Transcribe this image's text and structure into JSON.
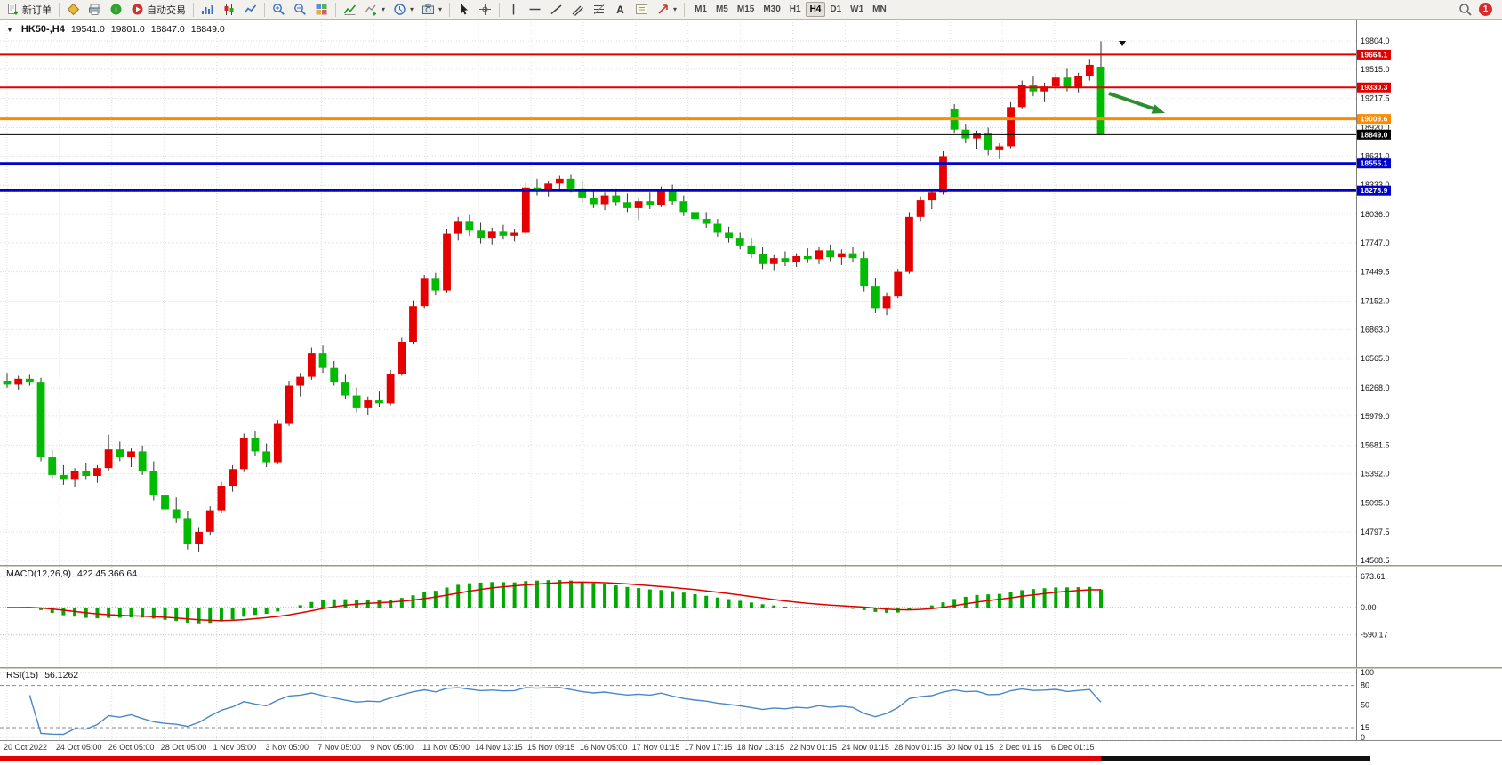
{
  "toolbar": {
    "items": [
      {
        "t": "btn",
        "name": "new-order",
        "icon": "doc-plus",
        "label": "新订单"
      },
      {
        "t": "sep"
      },
      {
        "t": "icon",
        "name": "chart-profile",
        "icon": "diamond"
      },
      {
        "t": "icon",
        "name": "print",
        "icon": "printer"
      },
      {
        "t": "icon",
        "name": "market-info",
        "icon": "info"
      },
      {
        "t": "btn",
        "name": "auto-trading",
        "icon": "autotrade",
        "label": "自动交易"
      },
      {
        "t": "sep"
      },
      {
        "t": "icon",
        "name": "bar-chart",
        "icon": "barchart"
      },
      {
        "t": "icon",
        "name": "candle-chart",
        "icon": "candles"
      },
      {
        "t": "icon",
        "name": "line-chart",
        "icon": "linechart"
      },
      {
        "t": "sep"
      },
      {
        "t": "icon",
        "name": "zoom-in",
        "icon": "zoomin"
      },
      {
        "t": "icon",
        "name": "zoom-out",
        "icon": "zoomout"
      },
      {
        "t": "icon",
        "name": "tile-windows",
        "icon": "tile"
      },
      {
        "t": "sep"
      },
      {
        "t": "icon",
        "name": "indicators",
        "icon": "indicator"
      },
      {
        "t": "icon",
        "name": "add-indicator",
        "icon": "addind",
        "caret": true
      },
      {
        "t": "icon",
        "name": "periods",
        "icon": "cycles",
        "caret": true
      },
      {
        "t": "icon",
        "name": "templates",
        "icon": "camera",
        "caret": true
      },
      {
        "t": "sep"
      },
      {
        "t": "icon",
        "name": "cursor",
        "icon": "cursor"
      },
      {
        "t": "icon",
        "name": "crosshair",
        "icon": "crosshair"
      },
      {
        "t": "sep"
      },
      {
        "t": "icon",
        "name": "vertical-line",
        "icon": "vline"
      },
      {
        "t": "icon",
        "name": "horizontal-line",
        "icon": "hline"
      },
      {
        "t": "icon",
        "name": "trendline",
        "icon": "tline"
      },
      {
        "t": "icon",
        "name": "equidistant-channel",
        "icon": "channel"
      },
      {
        "t": "icon",
        "name": "fibonacci",
        "icon": "fibo"
      },
      {
        "t": "icon",
        "name": "text",
        "icon": "textA"
      },
      {
        "t": "icon",
        "name": "text-label",
        "icon": "textT"
      },
      {
        "t": "icon",
        "name": "arrow-tools",
        "icon": "arrows",
        "caret": true
      },
      {
        "t": "sep"
      }
    ],
    "timeframes": [
      {
        "label": "M1"
      },
      {
        "label": "M5"
      },
      {
        "label": "M15"
      },
      {
        "label": "M30"
      },
      {
        "label": "H1"
      },
      {
        "label": "H4",
        "active": true
      },
      {
        "label": "D1"
      },
      {
        "label": "W1"
      },
      {
        "label": "MN"
      }
    ],
    "right": {
      "badge": "1"
    }
  },
  "chart": {
    "header": {
      "collapse_icon": "▼",
      "symbol": "HK50-,H4",
      "open": "19541.0",
      "high": "19801.0",
      "low": "18847.0",
      "close": "18849.0"
    },
    "levels": [
      {
        "label": "19664.1",
        "value": 19664.1,
        "color": "#e00000",
        "thickness": 2
      },
      {
        "label": "19330.3",
        "value": 19330.3,
        "color": "#e00000",
        "thickness": 2
      },
      {
        "label": "19009.6",
        "value": 19009.6,
        "color": "#ff8a00",
        "thickness": 3
      },
      {
        "label": "18849.0",
        "value": 18849.0,
        "color": "#000000",
        "thickness": 1
      },
      {
        "label": "18555.1",
        "value": 18555.1,
        "color": "#0000cc",
        "thickness": 3
      },
      {
        "label": "18278.9",
        "value": 18278.9,
        "color": "#0000cc",
        "thickness": 3
      }
    ],
    "arrow_color": "#2e8b2e"
  },
  "macd": {
    "title": "MACD(12,26,9)",
    "values": "422.45 366.64",
    "fast": 12,
    "slow": 26,
    "signal": 9,
    "bar_color": "#00a800",
    "signal_color": "#e00000",
    "axis": [
      {
        "label": "673.61",
        "value": 673.61
      },
      {
        "label": "0.00",
        "value": 0
      },
      {
        "label": "-590.17",
        "value": -590.17
      }
    ]
  },
  "rsi": {
    "title": "RSI(15)",
    "value": "56.1262",
    "period": 15,
    "line_color": "#4a86c8",
    "axis": [
      {
        "label": "100",
        "value": 100
      },
      {
        "label": "80",
        "value": 80
      },
      {
        "label": "50",
        "value": 50
      },
      {
        "label": "15",
        "value": 15
      },
      {
        "label": "0",
        "value": 0
      }
    ]
  },
  "chart_data": {
    "type": "candlestick",
    "symbol": "HK50-",
    "timeframe": "H4",
    "up_color": "#e60000",
    "down_color": "#00bb00",
    "y_min": 14508.5,
    "y_max": 19804.0,
    "y_ticks": [
      {
        "label": "19804.0",
        "value": 19804.0
      },
      {
        "label": "19515.0",
        "value": 19515.0
      },
      {
        "label": "19217.5",
        "value": 19217.5
      },
      {
        "label": "18920.0",
        "value": 18920.0
      },
      {
        "label": "18631.0",
        "value": 18631.0
      },
      {
        "label": "18333.0",
        "value": 18333.0
      },
      {
        "label": "18036.0",
        "value": 18036.0
      },
      {
        "label": "17747.0",
        "value": 17747.0
      },
      {
        "label": "17449.5",
        "value": 17449.5
      },
      {
        "label": "17152.0",
        "value": 17152.0
      },
      {
        "label": "16863.0",
        "value": 16863.0
      },
      {
        "label": "16565.0",
        "value": 16565.0
      },
      {
        "label": "16268.0",
        "value": 16268.0
      },
      {
        "label": "15979.0",
        "value": 15979.0
      },
      {
        "label": "15681.5",
        "value": 15681.5
      },
      {
        "label": "15392.0",
        "value": 15392.0
      },
      {
        "label": "15095.0",
        "value": 15095.0
      },
      {
        "label": "14797.5",
        "value": 14797.5
      },
      {
        "label": "14508.5",
        "value": 14508.5
      }
    ],
    "x_labels": [
      "20 Oct 2022",
      "24 Oct 05:00",
      "26 Oct 05:00",
      "28 Oct 05:00",
      "1 Nov 05:00",
      "3 Nov 05:00",
      "7 Nov 05:00",
      "9 Nov 05:00",
      "11 Nov 05:00",
      "14 Nov 13:15",
      "15 Nov 09:15",
      "16 Nov 05:00",
      "17 Nov 01:15",
      "17 Nov 17:15",
      "18 Nov 13:15",
      "22 Nov 01:15",
      "24 Nov 01:15",
      "28 Nov 01:15",
      "30 Nov 01:15",
      "2 Dec 01:15",
      "6 Dec 01:15"
    ],
    "ohlc": [
      [
        16340,
        16420,
        16270,
        16300
      ],
      [
        16300,
        16390,
        16250,
        16360
      ],
      [
        16360,
        16400,
        16290,
        16330
      ],
      [
        16330,
        16370,
        15520,
        15560
      ],
      [
        15560,
        15640,
        15340,
        15380
      ],
      [
        15380,
        15480,
        15280,
        15330
      ],
      [
        15330,
        15450,
        15260,
        15420
      ],
      [
        15420,
        15500,
        15330,
        15370
      ],
      [
        15370,
        15480,
        15300,
        15450
      ],
      [
        15450,
        15790,
        15420,
        15640
      ],
      [
        15640,
        15720,
        15520,
        15560
      ],
      [
        15560,
        15650,
        15460,
        15620
      ],
      [
        15620,
        15680,
        15380,
        15420
      ],
      [
        15420,
        15520,
        15120,
        15170
      ],
      [
        15170,
        15280,
        14980,
        15030
      ],
      [
        15030,
        15150,
        14890,
        14940
      ],
      [
        14940,
        15010,
        14620,
        14680
      ],
      [
        14680,
        14840,
        14600,
        14800
      ],
      [
        14800,
        15060,
        14760,
        15020
      ],
      [
        15020,
        15310,
        14990,
        15270
      ],
      [
        15270,
        15480,
        15210,
        15440
      ],
      [
        15440,
        15800,
        15410,
        15760
      ],
      [
        15760,
        15830,
        15570,
        15620
      ],
      [
        15620,
        15700,
        15460,
        15510
      ],
      [
        15510,
        15940,
        15490,
        15900
      ],
      [
        15900,
        16340,
        15880,
        16290
      ],
      [
        16290,
        16420,
        16180,
        16380
      ],
      [
        16380,
        16680,
        16350,
        16620
      ],
      [
        16620,
        16700,
        16420,
        16470
      ],
      [
        16470,
        16540,
        16290,
        16330
      ],
      [
        16330,
        16400,
        16150,
        16190
      ],
      [
        16190,
        16270,
        16020,
        16060
      ],
      [
        16060,
        16180,
        15990,
        16140
      ],
      [
        16140,
        16230,
        16070,
        16110
      ],
      [
        16110,
        16450,
        16090,
        16410
      ],
      [
        16410,
        16780,
        16390,
        16730
      ],
      [
        16730,
        17160,
        16710,
        17100
      ],
      [
        17100,
        17420,
        17080,
        17380
      ],
      [
        17380,
        17440,
        17210,
        17260
      ],
      [
        17260,
        17890,
        17240,
        17840
      ],
      [
        17840,
        18010,
        17770,
        17960
      ],
      [
        17960,
        18030,
        17820,
        17870
      ],
      [
        17870,
        17950,
        17740,
        17790
      ],
      [
        17790,
        17900,
        17730,
        17860
      ],
      [
        17860,
        17930,
        17780,
        17820
      ],
      [
        17820,
        17890,
        17760,
        17850
      ],
      [
        17850,
        18360,
        17830,
        18310
      ],
      [
        18310,
        18400,
        18230,
        18280
      ],
      [
        18280,
        18380,
        18220,
        18350
      ],
      [
        18350,
        18430,
        18280,
        18400
      ],
      [
        18400,
        18440,
        18260,
        18300
      ],
      [
        18300,
        18370,
        18160,
        18200
      ],
      [
        18200,
        18290,
        18100,
        18140
      ],
      [
        18140,
        18260,
        18080,
        18230
      ],
      [
        18230,
        18300,
        18120,
        18160
      ],
      [
        18160,
        18250,
        18060,
        18100
      ],
      [
        18100,
        18200,
        17980,
        18170
      ],
      [
        18170,
        18260,
        18090,
        18130
      ],
      [
        18130,
        18320,
        18110,
        18290
      ],
      [
        18290,
        18340,
        18130,
        18170
      ],
      [
        18170,
        18230,
        18020,
        18060
      ],
      [
        18060,
        18140,
        17950,
        17990
      ],
      [
        17990,
        18060,
        17900,
        17940
      ],
      [
        17940,
        17990,
        17810,
        17850
      ],
      [
        17850,
        17910,
        17750,
        17790
      ],
      [
        17790,
        17850,
        17680,
        17720
      ],
      [
        17720,
        17800,
        17590,
        17630
      ],
      [
        17630,
        17700,
        17480,
        17530
      ],
      [
        17530,
        17620,
        17460,
        17590
      ],
      [
        17590,
        17660,
        17510,
        17550
      ],
      [
        17550,
        17640,
        17500,
        17610
      ],
      [
        17610,
        17690,
        17540,
        17580
      ],
      [
        17580,
        17700,
        17530,
        17670
      ],
      [
        17670,
        17730,
        17560,
        17600
      ],
      [
        17600,
        17680,
        17520,
        17640
      ],
      [
        17640,
        17700,
        17550,
        17590
      ],
      [
        17590,
        17660,
        17250,
        17300
      ],
      [
        17300,
        17390,
        17030,
        17080
      ],
      [
        17080,
        17240,
        17010,
        17200
      ],
      [
        17200,
        17480,
        17180,
        17450
      ],
      [
        17450,
        18060,
        17430,
        18010
      ],
      [
        18010,
        18220,
        17960,
        18180
      ],
      [
        18180,
        18300,
        18090,
        18260
      ],
      [
        18260,
        18680,
        18240,
        18630
      ],
      [
        19110,
        19160,
        18860,
        18900
      ],
      [
        18900,
        18960,
        18760,
        18810
      ],
      [
        18810,
        18890,
        18700,
        18860
      ],
      [
        18860,
        18920,
        18640,
        18690
      ],
      [
        18690,
        18760,
        18600,
        18730
      ],
      [
        18730,
        19180,
        18710,
        19130
      ],
      [
        19130,
        19400,
        19110,
        19360
      ],
      [
        19360,
        19440,
        19240,
        19290
      ],
      [
        19290,
        19380,
        19180,
        19340
      ],
      [
        19340,
        19470,
        19300,
        19430
      ],
      [
        19430,
        19520,
        19290,
        19330
      ],
      [
        19330,
        19480,
        19280,
        19450
      ],
      [
        19450,
        19620,
        19400,
        19560
      ],
      [
        19541,
        19801,
        18847,
        18849
      ]
    ]
  }
}
